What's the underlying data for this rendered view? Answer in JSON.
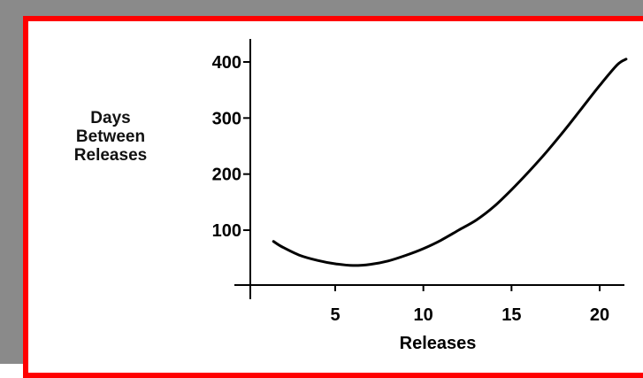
{
  "chart_data": {
    "type": "line",
    "title": "",
    "xlabel": "Releases",
    "ylabel_lines": [
      "Days",
      "Between",
      "Releases"
    ],
    "xticks": [
      5,
      10,
      15,
      20
    ],
    "yticks": [
      100,
      200,
      300,
      400
    ],
    "xlim": [
      0,
      22
    ],
    "ylim": [
      0,
      420
    ],
    "grid": false,
    "series": [
      {
        "x": [
          1.5,
          2,
          3,
          4,
          5,
          6,
          7,
          8,
          9,
          10,
          11,
          12,
          13,
          14,
          15,
          16,
          17,
          18,
          19,
          20,
          21,
          21.5
        ],
        "values": [
          80,
          70,
          55,
          46,
          40,
          37,
          39,
          45,
          55,
          67,
          82,
          100,
          118,
          142,
          172,
          205,
          240,
          278,
          318,
          358,
          395,
          405
        ]
      }
    ],
    "colors": {
      "line": "#000000",
      "axis": "#000000",
      "frame": "#ff0000",
      "shadow": "#8a8a8a"
    }
  }
}
